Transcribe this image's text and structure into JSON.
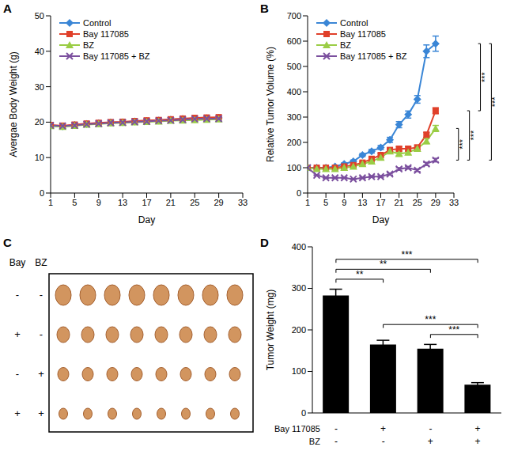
{
  "chart_data": [
    {
      "label": "A",
      "type": "line",
      "xlabel": "Day",
      "ylabel": "Avergae Body Weight (g)",
      "x": [
        1,
        3,
        5,
        7,
        9,
        11,
        13,
        15,
        17,
        19,
        21,
        23,
        25,
        27,
        29
      ],
      "xlim": [
        1,
        33
      ],
      "xticks": [
        1,
        5,
        9,
        13,
        17,
        21,
        25,
        29,
        33
      ],
      "ylim": [
        0,
        50
      ],
      "yticks": [
        0,
        10,
        20,
        30,
        40,
        50
      ],
      "grid": false,
      "legend": "upper left",
      "series": [
        {
          "name": "Control",
          "color": "#3a86d6",
          "marker": "diamond",
          "values": [
            19,
            18.8,
            19.2,
            19.5,
            19.7,
            19.9,
            20,
            20.2,
            20.3,
            20.5,
            20.7,
            20.9,
            21,
            21.1,
            21.2
          ]
        },
        {
          "name": "Bay 117085",
          "color": "#e0402a",
          "marker": "square",
          "values": [
            19.2,
            19,
            19.3,
            19.6,
            19.8,
            20,
            20.1,
            20.3,
            20.5,
            20.6,
            20.8,
            21,
            21.2,
            21.3,
            21.4
          ]
        },
        {
          "name": "BZ",
          "color": "#9acd45",
          "marker": "triangle",
          "values": [
            18.9,
            18.7,
            19,
            19.3,
            19.5,
            19.7,
            19.8,
            20,
            20.1,
            20.2,
            20.4,
            20.5,
            20.6,
            20.7,
            20.8
          ]
        },
        {
          "name": "Bay 117085 + BZ",
          "color": "#7b4f9e",
          "marker": "x",
          "values": [
            19.1,
            18.9,
            19.1,
            19.4,
            19.6,
            19.8,
            19.9,
            20.1,
            20.2,
            20.4,
            20.5,
            20.7,
            20.9,
            21,
            21
          ]
        }
      ]
    },
    {
      "label": "B",
      "type": "line",
      "xlabel": "Day",
      "ylabel": "Relative Tumor Volume (%)",
      "x": [
        1,
        3,
        5,
        7,
        9,
        11,
        13,
        15,
        17,
        19,
        21,
        23,
        25,
        27,
        29
      ],
      "xlim": [
        1,
        33
      ],
      "xticks": [
        1,
        5,
        9,
        13,
        17,
        21,
        25,
        29,
        33
      ],
      "ylim": [
        0,
        700
      ],
      "yticks": [
        0,
        100,
        200,
        300,
        400,
        500,
        600,
        700
      ],
      "grid": false,
      "legend": "upper left",
      "series": [
        {
          "name": "Control",
          "color": "#3a86d6",
          "marker": "diamond",
          "values": [
            100,
            100,
            100,
            105,
            115,
            125,
            150,
            165,
            180,
            210,
            270,
            310,
            370,
            560,
            590
          ],
          "errors": [
            0,
            2,
            3,
            3,
            4,
            5,
            6,
            7,
            8,
            10,
            12,
            14,
            15,
            25,
            30
          ]
        },
        {
          "name": "Bay 117085",
          "color": "#e0402a",
          "marker": "square",
          "values": [
            100,
            100,
            100,
            100,
            105,
            110,
            120,
            135,
            150,
            170,
            175,
            175,
            180,
            230,
            325
          ],
          "errors": [
            0,
            2,
            2,
            2,
            3,
            3,
            4,
            5,
            6,
            7,
            8,
            8,
            9,
            10,
            12
          ]
        },
        {
          "name": "BZ",
          "color": "#9acd45",
          "marker": "triangle",
          "values": [
            100,
            95,
            95,
            95,
            100,
            105,
            115,
            125,
            140,
            165,
            155,
            160,
            175,
            205,
            255
          ],
          "errors": [
            0,
            2,
            2,
            2,
            3,
            3,
            4,
            5,
            6,
            7,
            7,
            8,
            8,
            10,
            12
          ]
        },
        {
          "name": "Bay 117085 + BZ",
          "color": "#7b4f9e",
          "marker": "x",
          "values": [
            100,
            70,
            60,
            60,
            60,
            55,
            60,
            65,
            65,
            75,
            95,
            100,
            90,
            115,
            130
          ],
          "errors": [
            0,
            2,
            2,
            2,
            2,
            2,
            3,
            3,
            3,
            4,
            5,
            5,
            5,
            6,
            7
          ]
        }
      ],
      "significance": [
        {
          "between": [
            "BZ",
            "Bay 117085 + BZ"
          ],
          "label": "***"
        },
        {
          "between": [
            "Bay 117085",
            "Bay 117085 + BZ"
          ],
          "label": "***"
        },
        {
          "between": [
            "Control",
            "Bay 117085"
          ],
          "label": "***"
        },
        {
          "between": [
            "Control",
            "Bay 117085 + BZ"
          ],
          "label": "***"
        }
      ]
    },
    {
      "label": "D",
      "type": "bar",
      "ylabel": "Tumor Weight (mg)",
      "categories": [
        null,
        null,
        null,
        null
      ],
      "values": [
        283,
        165,
        155,
        68
      ],
      "errors": [
        15,
        10,
        10,
        5
      ],
      "color": "#000000",
      "ylim": [
        0,
        400
      ],
      "yticks": [
        0,
        100,
        200,
        300,
        400
      ],
      "grid": false,
      "category_table": [
        {
          "label": "Bay 117085",
          "marks": [
            "-",
            "+",
            "-",
            "+"
          ]
        },
        {
          "label": "BZ",
          "marks": [
            "-",
            "-",
            "+",
            "+"
          ]
        }
      ],
      "significance": [
        {
          "between": [
            2,
            3
          ],
          "label": "***"
        },
        {
          "between": [
            1,
            3
          ],
          "label": "***"
        },
        {
          "between": [
            0,
            1
          ],
          "label": "**"
        },
        {
          "between": [
            0,
            2
          ],
          "label": "**"
        },
        {
          "between": [
            0,
            3
          ],
          "label": "***"
        }
      ]
    }
  ],
  "photo": {
    "label": "C",
    "columns": [
      "Bay",
      "BZ"
    ],
    "rows": [
      [
        "-",
        "-"
      ],
      [
        "+",
        "-"
      ],
      [
        "-",
        "+"
      ],
      [
        "+",
        "+"
      ]
    ],
    "count_per_row": 8
  }
}
